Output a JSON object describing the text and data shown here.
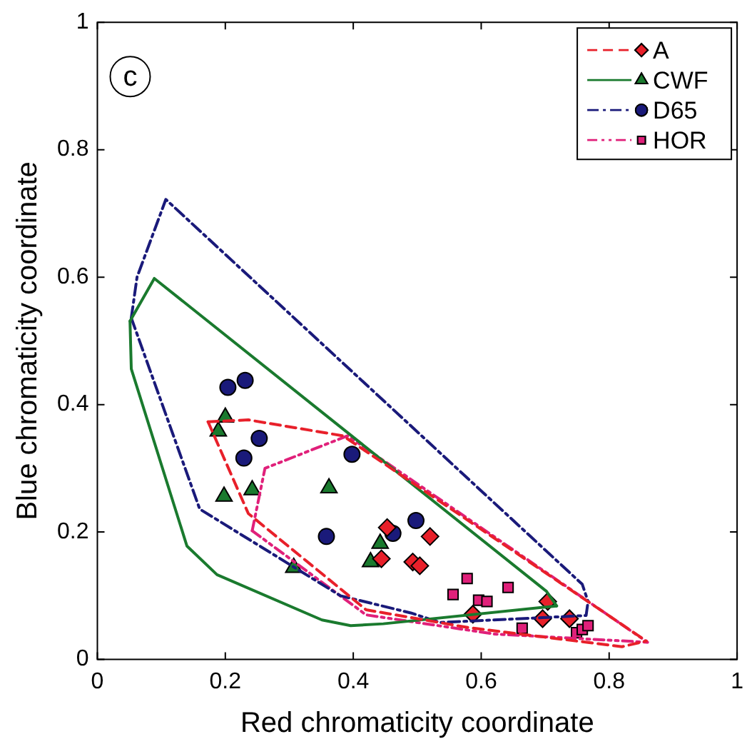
{
  "chart_data": {
    "type": "scatter",
    "xlabel": "Red chromaticity coordinate",
    "ylabel": "Blue chromaticity coordinate",
    "xlim": [
      0,
      1
    ],
    "ylim": [
      0,
      1
    ],
    "xticks": [
      0,
      0.2,
      0.4,
      0.6,
      0.8,
      1
    ],
    "yticks": [
      0,
      0.2,
      0.4,
      0.6,
      0.8,
      1
    ],
    "grid": false,
    "legend": "top right",
    "annotations": [
      "c"
    ],
    "series": [
      {
        "type": "line",
        "color": "#e8202a",
        "line_style": "dashed",
        "marker": "none",
        "x": [
          0.173,
          0.236,
          0.384,
          0.858
        ],
        "values": [
          0.373,
          0.376,
          0.351,
          0.029
        ]
      },
      {
        "type": "line",
        "color": "#e8202a",
        "line_style": "dashed",
        "marker": "none",
        "x": [
          0.173,
          0.236,
          0.42,
          0.58,
          0.82,
          0.858
        ],
        "values": [
          0.373,
          0.229,
          0.078,
          0.05,
          0.02,
          0.029
        ]
      },
      {
        "type": "line",
        "color": "#1a7a2e",
        "line_style": "solid",
        "marker": "none",
        "x": [
          0.051,
          0.089,
          0.702,
          0.718
        ],
        "values": [
          0.531,
          0.598,
          0.107,
          0.084
        ]
      },
      {
        "type": "line",
        "color": "#1a7a2e",
        "line_style": "solid",
        "marker": "none",
        "x": [
          0.051,
          0.053,
          0.14,
          0.187,
          0.351,
          0.396,
          0.447,
          0.718
        ],
        "values": [
          0.531,
          0.456,
          0.178,
          0.133,
          0.062,
          0.053,
          0.056,
          0.084
        ]
      },
      {
        "type": "line",
        "color": "#1a1a7a",
        "line_style": "dashdot",
        "marker": "none",
        "x": [
          0.053,
          0.062,
          0.107,
          0.758,
          0.767
        ],
        "values": [
          0.536,
          0.6,
          0.722,
          0.118,
          0.091
        ]
      },
      {
        "type": "line",
        "color": "#1a1a7a",
        "line_style": "dashdot",
        "marker": "none",
        "x": [
          0.053,
          0.16,
          0.38,
          0.49,
          0.536,
          0.764,
          0.767
        ],
        "values": [
          0.536,
          0.236,
          0.1,
          0.073,
          0.058,
          0.069,
          0.091
        ]
      },
      {
        "type": "line",
        "color": "#e0207a",
        "line_style": "dashdotdot",
        "marker": "none",
        "x": [
          0.242,
          0.262,
          0.391,
          0.86
        ],
        "values": [
          0.202,
          0.3,
          0.351,
          0.027
        ]
      },
      {
        "type": "line",
        "color": "#e0207a",
        "line_style": "dashdotdot",
        "marker": "none",
        "x": [
          0.242,
          0.42,
          0.62,
          0.86
        ],
        "values": [
          0.202,
          0.07,
          0.04,
          0.027
        ]
      },
      {
        "type": "scatter",
        "name": "A",
        "color": "#e8202a",
        "marker": "diamond",
        "x": [
          0.453,
          0.444,
          0.493,
          0.504,
          0.52,
          0.587,
          0.696,
          0.704,
          0.738
        ],
        "values": [
          0.207,
          0.158,
          0.153,
          0.147,
          0.193,
          0.071,
          0.064,
          0.091,
          0.064
        ]
      },
      {
        "type": "scatter",
        "name": "CWF",
        "color": "#1a7a2e",
        "marker": "triangle",
        "x": [
          0.189,
          0.2,
          0.198,
          0.242,
          0.362,
          0.307,
          0.442,
          0.427
        ],
        "values": [
          0.358,
          0.38,
          0.256,
          0.266,
          0.269,
          0.144,
          0.182,
          0.153
        ]
      },
      {
        "type": "scatter",
        "name": "D65",
        "color": "#1a1a7a",
        "marker": "circle",
        "x": [
          0.204,
          0.231,
          0.253,
          0.229,
          0.398,
          0.358,
          0.462,
          0.498
        ],
        "values": [
          0.427,
          0.438,
          0.347,
          0.316,
          0.322,
          0.193,
          0.198,
          0.218
        ]
      },
      {
        "type": "scatter",
        "name": "HOR",
        "color": "#e0207a",
        "marker": "square",
        "x": [
          0.556,
          0.578,
          0.596,
          0.609,
          0.642,
          0.664,
          0.749,
          0.758,
          0.767
        ],
        "values": [
          0.102,
          0.127,
          0.093,
          0.091,
          0.113,
          0.049,
          0.042,
          0.047,
          0.053
        ]
      }
    ]
  }
}
